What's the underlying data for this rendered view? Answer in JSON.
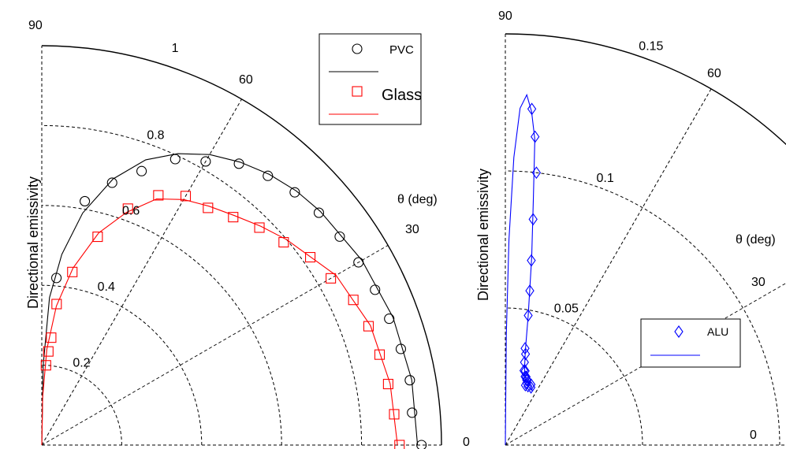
{
  "chart_data": [
    {
      "type": "scatter",
      "projection": "polar-quarter",
      "ylabel": "Directional emissivity",
      "theta_label": "θ (deg)",
      "r_max": 1.0,
      "r_ticks": [
        {
          "value": 0.2,
          "label": "0.2"
        },
        {
          "value": 0.4,
          "label": "0.4"
        },
        {
          "value": 0.6,
          "label": "0.6"
        },
        {
          "value": 0.8,
          "label": "0.8"
        },
        {
          "value": 1.0,
          "label": "1"
        }
      ],
      "angle_ticks": [
        {
          "value": 0,
          "label": "0"
        },
        {
          "value": 30,
          "label": "30"
        },
        {
          "value": 60,
          "label": "60"
        },
        {
          "value": 90,
          "label": "90"
        }
      ],
      "legend": {
        "position": "top-right",
        "entries": [
          {
            "series": "PVC",
            "label": "PVC"
          },
          {
            "series": "Glass",
            "label": "Glass"
          }
        ]
      },
      "series": [
        {
          "name": "PVC",
          "color": "#000000",
          "marker": "circle",
          "points": [
            {
              "angle": 0,
              "r": 0.95
            },
            {
              "angle": 5,
              "r": 0.93
            },
            {
              "angle": 10,
              "r": 0.935
            },
            {
              "angle": 15,
              "r": 0.93
            },
            {
              "angle": 20,
              "r": 0.925
            },
            {
              "angle": 25,
              "r": 0.92
            },
            {
              "angle": 30,
              "r": 0.915
            },
            {
              "angle": 35,
              "r": 0.91
            },
            {
              "angle": 40,
              "r": 0.905
            },
            {
              "angle": 45,
              "r": 0.895
            },
            {
              "angle": 50,
              "r": 0.88
            },
            {
              "angle": 55,
              "r": 0.86
            },
            {
              "angle": 60,
              "r": 0.82
            },
            {
              "angle": 65,
              "r": 0.79
            },
            {
              "angle": 70,
              "r": 0.73
            },
            {
              "angle": 75,
              "r": 0.68
            },
            {
              "angle": 80,
              "r": 0.62
            },
            {
              "angle": 85,
              "r": 0.42
            }
          ],
          "fit": [
            {
              "angle": 0,
              "r": 0.94
            },
            {
              "angle": 10,
              "r": 0.94
            },
            {
              "angle": 20,
              "r": 0.935
            },
            {
              "angle": 30,
              "r": 0.925
            },
            {
              "angle": 40,
              "r": 0.91
            },
            {
              "angle": 45,
              "r": 0.9
            },
            {
              "angle": 50,
              "r": 0.885
            },
            {
              "angle": 55,
              "r": 0.865
            },
            {
              "angle": 60,
              "r": 0.84
            },
            {
              "angle": 65,
              "r": 0.805
            },
            {
              "angle": 70,
              "r": 0.76
            },
            {
              "angle": 75,
              "r": 0.69
            },
            {
              "angle": 80,
              "r": 0.59
            },
            {
              "angle": 84,
              "r": 0.48
            },
            {
              "angle": 87,
              "r": 0.37
            },
            {
              "angle": 89,
              "r": 0.2
            },
            {
              "angle": 90,
              "r": 0.0
            }
          ]
        },
        {
          "name": "Glass",
          "color": "#ff0000",
          "marker": "square",
          "points": [
            {
              "angle": 0,
              "r": 0.895
            },
            {
              "angle": 5,
              "r": 0.885
            },
            {
              "angle": 10,
              "r": 0.88
            },
            {
              "angle": 15,
              "r": 0.875
            },
            {
              "angle": 20,
              "r": 0.87
            },
            {
              "angle": 25,
              "r": 0.86
            },
            {
              "angle": 30,
              "r": 0.835
            },
            {
              "angle": 35,
              "r": 0.82
            },
            {
              "angle": 40,
              "r": 0.79
            },
            {
              "angle": 45,
              "r": 0.77
            },
            {
              "angle": 50,
              "r": 0.745
            },
            {
              "angle": 55,
              "r": 0.725
            },
            {
              "angle": 60,
              "r": 0.72
            },
            {
              "angle": 65,
              "r": 0.69
            },
            {
              "angle": 70,
              "r": 0.63
            },
            {
              "angle": 75,
              "r": 0.54
            },
            {
              "angle": 80,
              "r": 0.44
            },
            {
              "angle": 84,
              "r": 0.355
            },
            {
              "angle": 85,
              "r": 0.27
            },
            {
              "angle": 86,
              "r": 0.235
            },
            {
              "angle": 87,
              "r": 0.2
            }
          ],
          "fit": [
            {
              "angle": 0,
              "r": 0.89
            },
            {
              "angle": 10,
              "r": 0.885
            },
            {
              "angle": 20,
              "r": 0.875
            },
            {
              "angle": 30,
              "r": 0.85
            },
            {
              "angle": 40,
              "r": 0.8
            },
            {
              "angle": 45,
              "r": 0.775
            },
            {
              "angle": 50,
              "r": 0.75
            },
            {
              "angle": 55,
              "r": 0.73
            },
            {
              "angle": 60,
              "r": 0.71
            },
            {
              "angle": 65,
              "r": 0.68
            },
            {
              "angle": 70,
              "r": 0.62
            },
            {
              "angle": 75,
              "r": 0.55
            },
            {
              "angle": 80,
              "r": 0.45
            },
            {
              "angle": 84,
              "r": 0.35
            },
            {
              "angle": 87,
              "r": 0.24
            },
            {
              "angle": 89,
              "r": 0.12
            },
            {
              "angle": 90,
              "r": 0.0
            }
          ]
        }
      ]
    },
    {
      "type": "scatter",
      "projection": "polar-quarter",
      "ylabel": "Directional emissivity",
      "theta_label": "θ (deg)",
      "r_max": 0.15,
      "r_ticks": [
        {
          "value": 0.05,
          "label": "0.05"
        },
        {
          "value": 0.1,
          "label": "0.1"
        },
        {
          "value": 0.15,
          "label": "0.15"
        }
      ],
      "angle_ticks": [
        {
          "value": 0,
          "label": "0"
        },
        {
          "value": 30,
          "label": "30"
        },
        {
          "value": 60,
          "label": "60"
        },
        {
          "value": 90,
          "label": "90"
        }
      ],
      "legend": {
        "position": "right",
        "entries": [
          {
            "series": "ALU",
            "label": "ALU"
          }
        ]
      },
      "series": [
        {
          "name": "ALU",
          "color": "#0000ff",
          "marker": "diamond",
          "points": [
            {
              "angle": 71.5,
              "r": 0.023
            },
            {
              "angle": 67.0,
              "r": 0.024
            },
            {
              "angle": 66.0,
              "r": 0.023
            },
            {
              "angle": 69.0,
              "r": 0.023
            },
            {
              "angle": 71.0,
              "r": 0.024
            },
            {
              "angle": 71.5,
              "r": 0.025
            },
            {
              "angle": 72.0,
              "r": 0.025
            },
            {
              "angle": 73.0,
              "r": 0.026
            },
            {
              "angle": 74.0,
              "r": 0.026
            },
            {
              "angle": 75.0,
              "r": 0.028
            },
            {
              "angle": 76.0,
              "r": 0.028
            },
            {
              "angle": 77.0,
              "r": 0.031
            },
            {
              "angle": 77.5,
              "r": 0.034
            },
            {
              "angle": 78.5,
              "r": 0.036
            },
            {
              "angle": 80.0,
              "r": 0.048
            },
            {
              "angle": 81.0,
              "r": 0.057
            },
            {
              "angle": 82.0,
              "r": 0.068
            },
            {
              "angle": 83.0,
              "r": 0.083
            },
            {
              "angle": 83.5,
              "r": 0.1
            },
            {
              "angle": 84.5,
              "r": 0.113
            },
            {
              "angle": 85.5,
              "r": 0.123
            }
          ],
          "fit": [
            {
              "angle": 63.0,
              "r": 0.022
            },
            {
              "angle": 66.0,
              "r": 0.023
            },
            {
              "angle": 69.0,
              "r": 0.024
            },
            {
              "angle": 72.0,
              "r": 0.025
            },
            {
              "angle": 74.0,
              "r": 0.026
            },
            {
              "angle": 76.0,
              "r": 0.029
            },
            {
              "angle": 78.0,
              "r": 0.035
            },
            {
              "angle": 80.0,
              "r": 0.048
            },
            {
              "angle": 82.0,
              "r": 0.069
            },
            {
              "angle": 83.5,
              "r": 0.09
            },
            {
              "angle": 84.5,
              "r": 0.112
            },
            {
              "angle": 85.5,
              "r": 0.122
            },
            {
              "angle": 86.5,
              "r": 0.128
            },
            {
              "angle": 87.5,
              "r": 0.123
            },
            {
              "angle": 88.3,
              "r": 0.105
            },
            {
              "angle": 89.0,
              "r": 0.075
            },
            {
              "angle": 89.5,
              "r": 0.04
            },
            {
              "angle": 90.0,
              "r": 0.0
            }
          ]
        }
      ]
    }
  ]
}
